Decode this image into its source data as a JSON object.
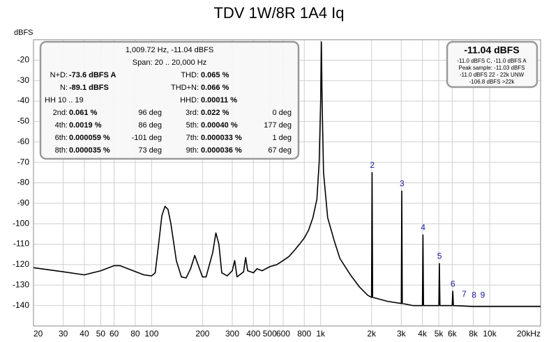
{
  "chart_data": {
    "type": "line",
    "title": "TDV 1W/8R 1A4 Iq",
    "y_label": "dBFS",
    "x_scale": "log",
    "grid": true,
    "color": "#000000",
    "xlim": [
      20,
      20000
    ],
    "ylim": [
      -150,
      -10
    ],
    "xticks": [
      20,
      30,
      40,
      50,
      60,
      80,
      100,
      200,
      300,
      400,
      500,
      600,
      800,
      {
        "value": 1000,
        "label": "1k"
      },
      {
        "value": 2000,
        "label": "2k"
      },
      {
        "value": 3000,
        "label": "3k"
      },
      {
        "value": 4000,
        "label": "4k"
      },
      {
        "value": 5000,
        "label": "5k"
      },
      {
        "value": 6000,
        "label": "6k"
      },
      {
        "value": 8000,
        "label": "8k"
      },
      {
        "value": 10000,
        "label": "10k"
      },
      {
        "value": 20000,
        "label": "20kHz"
      }
    ],
    "yticks": [
      -20,
      -30,
      -40,
      -50,
      -60,
      -70,
      -80,
      -90,
      -100,
      -110,
      -120,
      -130,
      -140
    ],
    "x": [
      20,
      30,
      40,
      50,
      60,
      65,
      75,
      90,
      100,
      105,
      110,
      115,
      120,
      125,
      130,
      140,
      150,
      160,
      170,
      180,
      190,
      200,
      210,
      230,
      240,
      250,
      260,
      280,
      300,
      310,
      320,
      350,
      360,
      370,
      400,
      420,
      450,
      500,
      550,
      600,
      650,
      700,
      750,
      800,
      850,
      900,
      950,
      980,
      1000,
      1010,
      1020,
      1040,
      1100,
      1200,
      1300,
      1500,
      1700,
      1900,
      2000,
      2015,
      2030,
      2500,
      3000,
      3020,
      3040,
      3500,
      4000,
      4030,
      4060,
      5000,
      5040,
      5080,
      6000,
      6050,
      6100,
      8000,
      10000,
      20000
    ],
    "values": [
      -121.5,
      -123.5,
      -125,
      -123,
      -120.5,
      -120.5,
      -122.5,
      -125,
      -125.5,
      -124,
      -110,
      -96,
      -91.5,
      -93,
      -100,
      -118,
      -126,
      -126.5,
      -122,
      -115.5,
      -121,
      -126,
      -126,
      -114,
      -104.5,
      -110,
      -124,
      -125.5,
      -123,
      -118,
      -126,
      -123.5,
      -116.5,
      -123,
      -124,
      -122,
      -123,
      -121,
      -120,
      -118,
      -116,
      -113,
      -110,
      -107,
      -103,
      -97,
      -88,
      -70,
      -40,
      -11.04,
      -40,
      -75,
      -97,
      -108,
      -117,
      -125,
      -131,
      -135,
      -136,
      -75,
      -136,
      -138,
      -139,
      -84,
      -139,
      -140,
      -140,
      -105.5,
      -140,
      -140,
      -119.5,
      -140,
      -140,
      -133,
      -140,
      -140.5,
      -140.5,
      -140.5
    ],
    "annotations": [
      {
        "label": "2",
        "x": 2019,
        "y": -75
      },
      {
        "label": "3",
        "x": 3029,
        "y": -84
      },
      {
        "label": "4",
        "x": 4039,
        "y": -105.5
      },
      {
        "label": "5",
        "x": 5049,
        "y": -119.5
      },
      {
        "label": "6",
        "x": 6058,
        "y": -133
      },
      {
        "label": "7",
        "x": 7068,
        "y": -138
      },
      {
        "label": "8",
        "x": 8078,
        "y": -138.5
      },
      {
        "label": "9",
        "x": 9087,
        "y": -138.5
      }
    ],
    "info_box": {
      "header": [
        "1,009.72 Hz, -11.04 dBFS",
        "Span: 20 .. 20,000 Hz"
      ],
      "rows": [
        [
          {
            "label": "N+D:",
            "value": "-73.6 dBFS A"
          },
          {
            "label": "THD:",
            "value": "0.065 %"
          }
        ],
        [
          {
            "label": "N:",
            "value": "-89.1 dBFS"
          },
          {
            "label": "THD+N:",
            "value": "0.066 %"
          }
        ],
        [
          {
            "label": "HH 10 .. 19"
          },
          {
            "label": "HHD:",
            "value": "0.00011 %"
          }
        ],
        [
          {
            "label": "2nd:",
            "value": "0.061 %",
            "phase": "96 deg"
          },
          {
            "label": "3rd:",
            "value": "0.022 %",
            "phase": "0 deg"
          }
        ],
        [
          {
            "label": "4th:",
            "value": "0.0019 %",
            "phase": "86 deg"
          },
          {
            "label": "5th:",
            "value": "0.00040 %",
            "phase": "177 deg"
          }
        ],
        [
          {
            "label": "6th:",
            "value": "0.000059 %",
            "phase": "-101 deg"
          },
          {
            "label": "7th:",
            "value": "0.000033 %",
            "phase": "1 deg"
          }
        ],
        [
          {
            "label": "8th:",
            "value": "0.000035 %",
            "phase": "73 deg"
          },
          {
            "label": "9th:",
            "value": "0.000036 %",
            "phase": "67 deg"
          }
        ]
      ]
    },
    "level_box": {
      "title": "-11.04 dBFS",
      "lines": [
        "-11.0 dBFS C, -11.0 dBFS A",
        "Peak sample: -11.03 dBFS",
        "-11.0 dBFS 22 - 22k UNW",
        "-106.8 dBFS >22k"
      ]
    }
  }
}
